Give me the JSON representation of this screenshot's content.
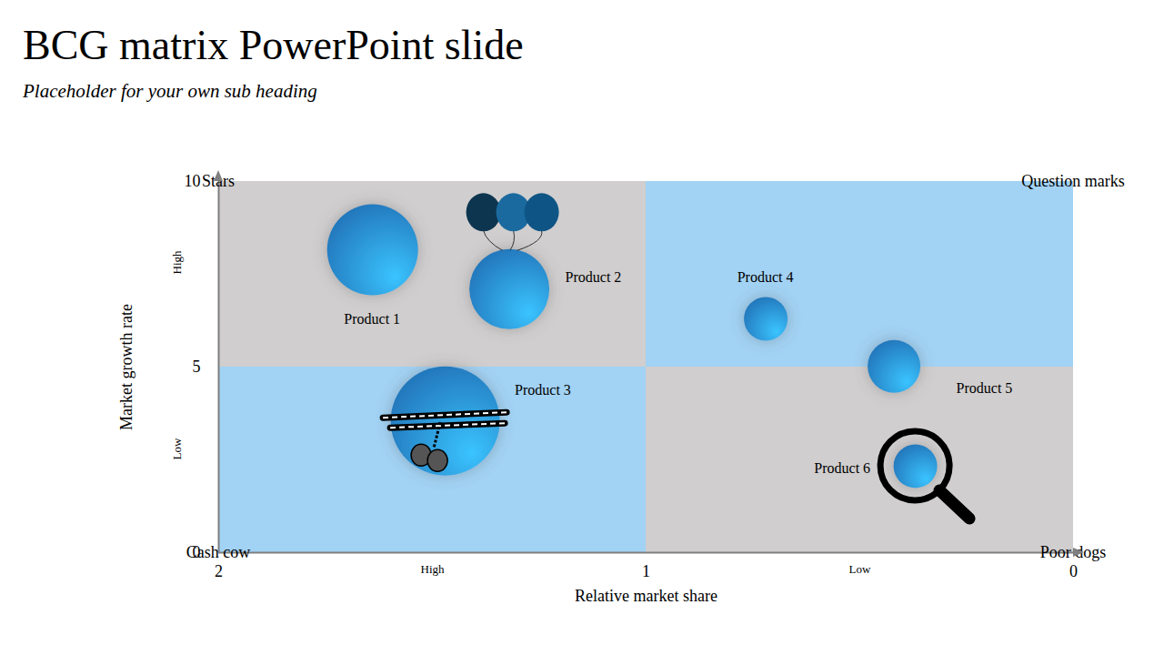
{
  "chart_data": {
    "type": "bubble",
    "title": "BCG matrix PowerPoint slide",
    "subtitle": "Placeholder for your own sub heading",
    "x_label": "Relative market share",
    "y_label": "Market growth rate",
    "xlim": [
      2,
      0
    ],
    "xticks": [
      2,
      1,
      0
    ],
    "ylim": [
      0,
      10
    ],
    "yticks": [
      0,
      5,
      10
    ],
    "xlevels": [
      {
        "value": 1.5,
        "label": "High"
      },
      {
        "value": 0.5,
        "label": "Low"
      }
    ],
    "ylevels": [
      {
        "value": 7.5,
        "label": "High"
      },
      {
        "value": 2.5,
        "label": "Low"
      }
    ],
    "quadrants": [
      {
        "label": "Stars",
        "x": [
          2,
          1
        ],
        "y": [
          5,
          10
        ],
        "color": "#d0cece"
      },
      {
        "label": "Question marks",
        "x": [
          1,
          0
        ],
        "y": [
          5,
          10
        ],
        "color": "#a2d2f4"
      },
      {
        "label": "Cash cow",
        "x": [
          2,
          1
        ],
        "y": [
          0,
          5
        ],
        "color": "#a2d2f4"
      },
      {
        "label": "Poor dogs",
        "x": [
          1,
          0
        ],
        "y": [
          0,
          5
        ],
        "color": "#d0cece"
      }
    ],
    "labels": [
      "Product 1",
      "Product 2",
      "Product 3",
      "Product 4",
      "Product 5",
      "Product 6"
    ],
    "x": [
      1.64,
      1.32,
      1.47,
      0.72,
      0.42,
      0.37
    ],
    "y": [
      8.16,
      7.1,
      3.55,
      6.3,
      5.02,
      2.33
    ],
    "sizes": [
      50,
      44,
      60,
      24,
      29,
      24
    ],
    "color": "#2a8ee0"
  }
}
